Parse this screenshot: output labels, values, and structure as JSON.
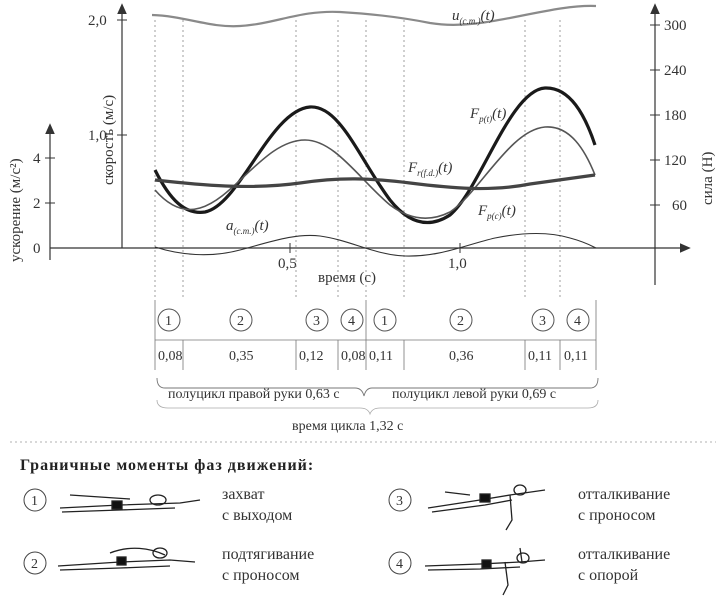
{
  "axes": {
    "velocity_label": "скорость (м/с)",
    "accel_label": "ускорение (м/с²)",
    "force_label": "сила (Н)",
    "time_label": "время (с)",
    "velocity_ticks": [
      "2,0",
      "1,0"
    ],
    "accel_ticks": [
      "4",
      "2",
      "0"
    ],
    "force_ticks": [
      "300",
      "240",
      "180",
      "120",
      "60"
    ],
    "time_ticks": [
      "0,5",
      "1,0"
    ]
  },
  "curves": {
    "u_label": "u",
    "u_sub": "(c.m.)",
    "fpt_label": "F",
    "fpt_sub": "p(t)",
    "frfd_label": "F",
    "frfd_sub": "r(f.d.)",
    "fpc_label": "F",
    "fpc_sub": "p(c)",
    "a_label": "a",
    "a_sub": "(c.m.)",
    "t_arg": "(t)"
  },
  "phases_timeline": {
    "numbers": [
      "1",
      "2",
      "3",
      "4",
      "1",
      "2",
      "3",
      "4"
    ],
    "durations": [
      "0,08",
      "0,35",
      "0,12",
      "0,08",
      "0,11",
      "0,36",
      "0,11",
      "0,11"
    ],
    "right_half": "полуцикл правой руки 0,63 с",
    "left_half": "полуцикл левой руки 0,69 с",
    "cycle": "время цикла 1,32 с"
  },
  "legend": {
    "heading": "Граничные моменты фаз движений:",
    "items": [
      {
        "num": "1",
        "line1": "захват",
        "line2": "с выходом"
      },
      {
        "num": "2",
        "line1": "подтягивание",
        "line2": "с проносом"
      },
      {
        "num": "3",
        "line1": "отталкивание",
        "line2": "с проносом"
      },
      {
        "num": "4",
        "line1": "отталкивание",
        "line2": "с опорой"
      }
    ]
  }
}
